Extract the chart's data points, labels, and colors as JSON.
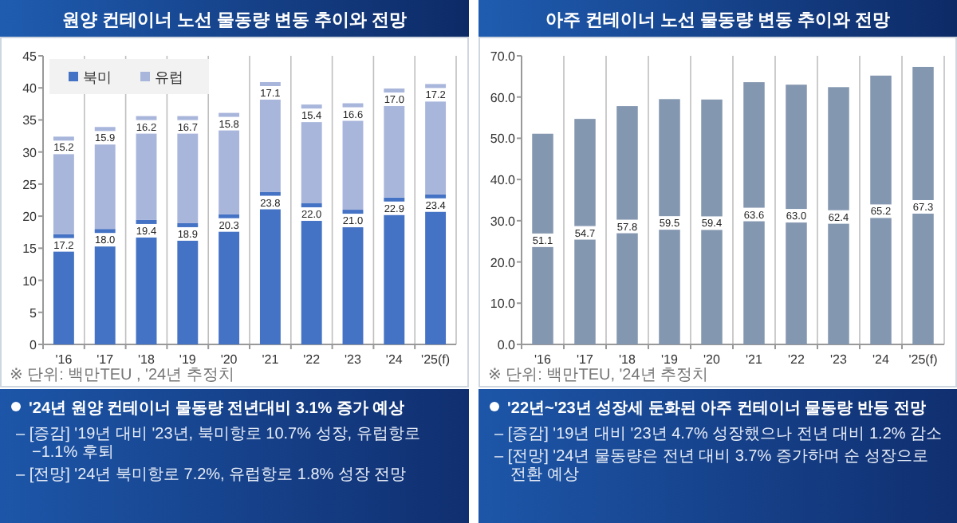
{
  "chart_data": [
    {
      "type": "bar",
      "title": "원양 컨테이너 노선 물동량 변동 추이와 전망",
      "categories": [
        "'16",
        "'17",
        "'18",
        "'19",
        "'20",
        "'21",
        "'22",
        "'23",
        "'24",
        "'25(f)"
      ],
      "stacked": true,
      "data_labels": true,
      "legend": "top left",
      "grid": "x",
      "ylim": [
        0,
        45
      ],
      "yticks": [
        0,
        5,
        10,
        15,
        20,
        25,
        30,
        35,
        40,
        45
      ],
      "series": [
        {
          "name": "북미",
          "color": "#4472c4",
          "values": [
            17.2,
            18.0,
            19.4,
            18.9,
            20.3,
            23.8,
            22.0,
            21.0,
            22.9,
            23.4
          ],
          "value_labels": [
            "17.2",
            "18.0",
            "19.4",
            "18.9",
            "20.3",
            "23.8",
            "22.0",
            "21.0",
            "22.9",
            "23.4"
          ]
        },
        {
          "name": "유럽",
          "color": "#a9b6dc",
          "values": [
            15.2,
            15.9,
            16.2,
            16.7,
            15.8,
            17.1,
            15.4,
            16.6,
            17.0,
            17.2
          ],
          "value_labels": [
            "15.2",
            "15.9",
            "16.2",
            "16.7",
            "15.8",
            "17.1",
            "15.4",
            "16.6",
            "17.0",
            "17.2"
          ]
        }
      ],
      "annotations": [
        "※ 단위: 백만TEU , '24년 추정치",
        "'24년 원양 컨테이너 물동량 전년대비 3.1% 증가 예상",
        "– [증감] '19년 대비 '23년, 북미항로 10.7% 성장, 유럽항로 −1.1% 후퇴",
        "– [전망] '24년 북미항로 7.2%, 유럽항로 1.8% 성장 전망"
      ]
    },
    {
      "type": "bar",
      "title": "아주 컨테이너 노선 물동량 변동 추이와 전망",
      "categories": [
        "'16",
        "'17",
        "'18",
        "'19",
        "'20",
        "'21",
        "'22",
        "'23",
        "'24",
        "'25(f)"
      ],
      "data_labels": true,
      "grid": "x",
      "ylim": [
        0,
        70
      ],
      "yticks": [
        {
          "value": 0,
          "label": "0.0"
        },
        {
          "value": 10,
          "label": "10.0"
        },
        {
          "value": 20,
          "label": "20.0"
        },
        {
          "value": 30,
          "label": "30.0"
        },
        {
          "value": 40,
          "label": "40.0"
        },
        {
          "value": 50,
          "label": "50.0"
        },
        {
          "value": 60,
          "label": "60.0"
        },
        {
          "value": 70,
          "label": "70.0"
        }
      ],
      "series": [
        {
          "color": "#8497b0",
          "values": [
            51.1,
            54.7,
            57.8,
            59.5,
            59.4,
            63.6,
            63.0,
            62.4,
            65.2,
            67.3
          ],
          "value_labels": [
            "51.1",
            "54.7",
            "57.8",
            "59.5",
            "59.4",
            "63.6",
            "63.0",
            "62.4",
            "65.2",
            "67.3"
          ]
        }
      ],
      "annotations": [
        "※ 단위: 백만TEU, '24년 추정치",
        "'22년~'23년 성장세 둔화된 아주 컨테이너 물동량 반등 전망",
        "– [증감] '19년 대비 '23년 4.7% 성장했으나 전년 대비 1.2% 감소",
        "– [전망] '24년 물동량은 전년 대비 3.7% 증가하며 순 성장으로 전환 예상"
      ]
    }
  ]
}
